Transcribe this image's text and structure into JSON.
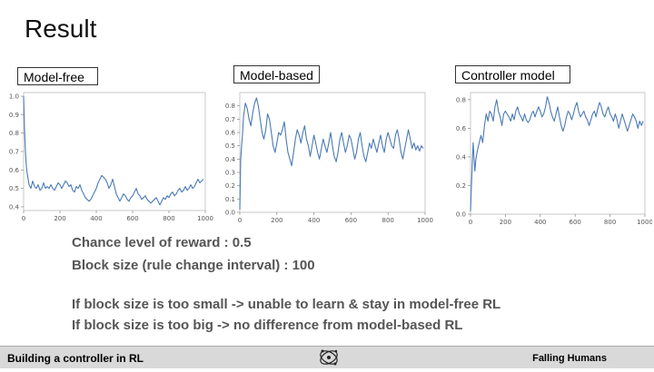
{
  "slide": {
    "title": "Result",
    "notes": [
      "Chance level of reward : 0.5",
      "Block size (rule change interval) : 100",
      "If block size is too small -> unable to learn & stay in model-free RL",
      "If block size is too big -> no difference from model-based RL"
    ]
  },
  "footer": {
    "left": "Building a controller in RL",
    "right": "Falling Humans",
    "logo_icon": "molecule-logo-icon"
  },
  "style": {
    "line_color": "#4a7ab5"
  },
  "chart_data": [
    {
      "type": "line",
      "label": "Model-free",
      "xlim": [
        0,
        1000
      ],
      "ylim": [
        0.38,
        1.02
      ],
      "xticks": [
        0,
        200,
        400,
        600,
        800,
        1000
      ],
      "yticks": [
        0.4,
        0.5,
        0.6,
        0.7,
        0.8,
        0.9,
        1.0
      ],
      "ytick_labels": [
        "0.4",
        "0.5",
        "0.6",
        "0.7",
        "0.8",
        "0.9",
        "1.0"
      ],
      "series": [
        {
          "x": [
            0,
            5,
            10,
            15,
            20,
            25,
            30,
            40,
            50,
            60,
            70,
            80,
            90,
            100,
            110,
            120,
            130,
            140,
            150,
            160,
            170,
            180,
            190,
            200,
            210,
            220,
            230,
            240,
            250,
            260,
            270,
            280,
            290,
            300,
            310,
            320,
            330,
            340,
            350,
            360,
            370,
            380,
            390,
            400,
            410,
            420,
            430,
            440,
            450,
            460,
            470,
            480,
            490,
            500,
            510,
            520,
            530,
            540,
            550,
            560,
            570,
            580,
            590,
            600,
            610,
            620,
            630,
            640,
            650,
            660,
            670,
            680,
            690,
            700,
            710,
            720,
            730,
            740,
            750,
            760,
            770,
            780,
            790,
            800,
            810,
            820,
            830,
            840,
            850,
            860,
            870,
            880,
            890,
            900,
            910,
            920,
            930,
            940,
            950,
            960,
            970,
            980,
            990
          ],
          "y": [
            1.0,
            0.82,
            0.7,
            0.62,
            0.58,
            0.55,
            0.52,
            0.5,
            0.54,
            0.51,
            0.5,
            0.52,
            0.49,
            0.5,
            0.53,
            0.5,
            0.51,
            0.5,
            0.52,
            0.5,
            0.49,
            0.51,
            0.53,
            0.52,
            0.5,
            0.52,
            0.54,
            0.53,
            0.51,
            0.52,
            0.49,
            0.48,
            0.51,
            0.5,
            0.52,
            0.49,
            0.47,
            0.45,
            0.44,
            0.43,
            0.44,
            0.46,
            0.48,
            0.5,
            0.53,
            0.55,
            0.57,
            0.56,
            0.55,
            0.53,
            0.5,
            0.52,
            0.55,
            0.51,
            0.47,
            0.45,
            0.43,
            0.45,
            0.47,
            0.46,
            0.44,
            0.43,
            0.45,
            0.46,
            0.48,
            0.5,
            0.47,
            0.46,
            0.44,
            0.45,
            0.46,
            0.44,
            0.43,
            0.42,
            0.43,
            0.44,
            0.45,
            0.43,
            0.41,
            0.43,
            0.45,
            0.44,
            0.46,
            0.45,
            0.47,
            0.48,
            0.46,
            0.47,
            0.49,
            0.5,
            0.48,
            0.49,
            0.51,
            0.49,
            0.5,
            0.52,
            0.5,
            0.51,
            0.53,
            0.55,
            0.53,
            0.54,
            0.55
          ]
        }
      ]
    },
    {
      "type": "line",
      "label": "Model-based",
      "xlim": [
        0,
        1000
      ],
      "ylim": [
        0.0,
        0.9
      ],
      "xticks": [
        0,
        200,
        400,
        600,
        800,
        1000
      ],
      "yticks": [
        0.0,
        0.1,
        0.2,
        0.3,
        0.4,
        0.5,
        0.6,
        0.7,
        0.8
      ],
      "ytick_labels": [
        "0.0",
        "0.1",
        "0.2",
        "0.3",
        "0.4",
        "0.5",
        "0.6",
        "0.7",
        "0.8"
      ],
      "series": [
        {
          "x": [
            0,
            5,
            10,
            15,
            20,
            30,
            40,
            50,
            60,
            70,
            80,
            90,
            100,
            110,
            120,
            130,
            140,
            150,
            160,
            170,
            180,
            190,
            200,
            210,
            220,
            230,
            240,
            250,
            260,
            270,
            280,
            290,
            300,
            310,
            320,
            330,
            340,
            350,
            360,
            370,
            380,
            390,
            400,
            410,
            420,
            430,
            440,
            450,
            460,
            470,
            480,
            490,
            500,
            510,
            520,
            530,
            540,
            550,
            560,
            570,
            580,
            590,
            600,
            610,
            620,
            630,
            640,
            650,
            660,
            670,
            680,
            690,
            700,
            710,
            720,
            730,
            740,
            750,
            760,
            770,
            780,
            790,
            800,
            810,
            820,
            830,
            840,
            850,
            860,
            870,
            880,
            890,
            900,
            910,
            920,
            930,
            940,
            950,
            960,
            970,
            980,
            990
          ],
          "y": [
            0.02,
            0.4,
            0.5,
            0.6,
            0.72,
            0.82,
            0.78,
            0.7,
            0.65,
            0.75,
            0.82,
            0.86,
            0.8,
            0.7,
            0.6,
            0.55,
            0.62,
            0.74,
            0.7,
            0.6,
            0.5,
            0.45,
            0.52,
            0.6,
            0.58,
            0.62,
            0.68,
            0.55,
            0.45,
            0.4,
            0.35,
            0.45,
            0.55,
            0.62,
            0.58,
            0.52,
            0.6,
            0.65,
            0.55,
            0.5,
            0.42,
            0.5,
            0.58,
            0.52,
            0.45,
            0.4,
            0.48,
            0.55,
            0.5,
            0.45,
            0.52,
            0.6,
            0.5,
            0.42,
            0.38,
            0.45,
            0.55,
            0.6,
            0.52,
            0.45,
            0.5,
            0.58,
            0.55,
            0.48,
            0.4,
            0.45,
            0.55,
            0.6,
            0.5,
            0.42,
            0.38,
            0.45,
            0.52,
            0.48,
            0.55,
            0.5,
            0.45,
            0.52,
            0.58,
            0.5,
            0.45,
            0.55,
            0.6,
            0.55,
            0.5,
            0.48,
            0.58,
            0.62,
            0.55,
            0.45,
            0.4,
            0.48,
            0.55,
            0.62,
            0.55,
            0.48,
            0.52,
            0.47,
            0.5,
            0.46,
            0.5,
            0.48
          ]
        }
      ]
    },
    {
      "type": "line",
      "label": "Controller model",
      "xlim": [
        0,
        1000
      ],
      "ylim": [
        0.0,
        0.85
      ],
      "xticks": [
        0,
        200,
        400,
        600,
        800,
        1000
      ],
      "yticks": [
        0.0,
        0.2,
        0.4,
        0.6,
        0.8
      ],
      "ytick_labels": [
        "0.0",
        "0.2",
        "0.4",
        "0.6",
        "0.8"
      ],
      "series": [
        {
          "x": [
            0,
            5,
            10,
            15,
            20,
            25,
            30,
            40,
            50,
            60,
            70,
            80,
            90,
            100,
            110,
            120,
            130,
            140,
            150,
            160,
            170,
            180,
            190,
            200,
            210,
            220,
            230,
            240,
            250,
            260,
            270,
            280,
            290,
            300,
            310,
            320,
            330,
            340,
            350,
            360,
            370,
            380,
            390,
            400,
            410,
            420,
            430,
            440,
            450,
            460,
            470,
            480,
            490,
            500,
            510,
            520,
            530,
            540,
            550,
            560,
            570,
            580,
            590,
            600,
            610,
            620,
            630,
            640,
            650,
            660,
            670,
            680,
            690,
            700,
            710,
            720,
            730,
            740,
            750,
            760,
            770,
            780,
            790,
            800,
            810,
            820,
            830,
            840,
            850,
            860,
            870,
            880,
            890,
            900,
            910,
            920,
            930,
            940,
            950,
            960,
            970,
            980,
            990
          ],
          "y": [
            0.02,
            0.2,
            0.35,
            0.5,
            0.4,
            0.3,
            0.38,
            0.45,
            0.5,
            0.55,
            0.5,
            0.62,
            0.7,
            0.65,
            0.72,
            0.7,
            0.65,
            0.75,
            0.8,
            0.72,
            0.68,
            0.62,
            0.7,
            0.72,
            0.7,
            0.68,
            0.65,
            0.7,
            0.66,
            0.72,
            0.75,
            0.7,
            0.68,
            0.65,
            0.7,
            0.66,
            0.64,
            0.66,
            0.7,
            0.72,
            0.68,
            0.72,
            0.75,
            0.72,
            0.68,
            0.7,
            0.75,
            0.82,
            0.78,
            0.72,
            0.68,
            0.65,
            0.7,
            0.75,
            0.68,
            0.62,
            0.58,
            0.62,
            0.68,
            0.72,
            0.7,
            0.66,
            0.7,
            0.75,
            0.78,
            0.72,
            0.68,
            0.7,
            0.72,
            0.68,
            0.66,
            0.62,
            0.66,
            0.7,
            0.72,
            0.68,
            0.74,
            0.78,
            0.75,
            0.7,
            0.68,
            0.72,
            0.75,
            0.7,
            0.68,
            0.65,
            0.7,
            0.66,
            0.6,
            0.65,
            0.7,
            0.66,
            0.62,
            0.58,
            0.62,
            0.66,
            0.7,
            0.68,
            0.65,
            0.6,
            0.65,
            0.62,
            0.65
          ]
        }
      ]
    }
  ]
}
